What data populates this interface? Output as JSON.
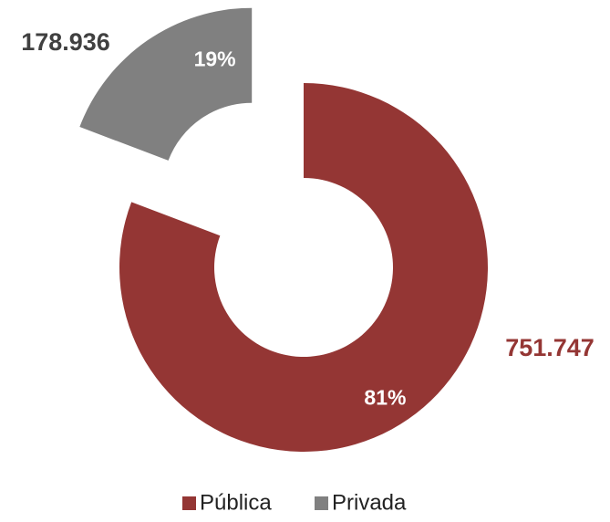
{
  "chart_data": {
    "type": "donut",
    "categories": [
      "Pública",
      "Privada"
    ],
    "values": [
      751747,
      178936
    ],
    "value_labels": [
      "751.747",
      "178.936"
    ],
    "percent_labels": [
      "81%",
      "19%"
    ],
    "colors": [
      "#943634",
      "#808080"
    ],
    "value_label_colors": [
      "#943634",
      "#404040"
    ],
    "legend": "bottom"
  }
}
